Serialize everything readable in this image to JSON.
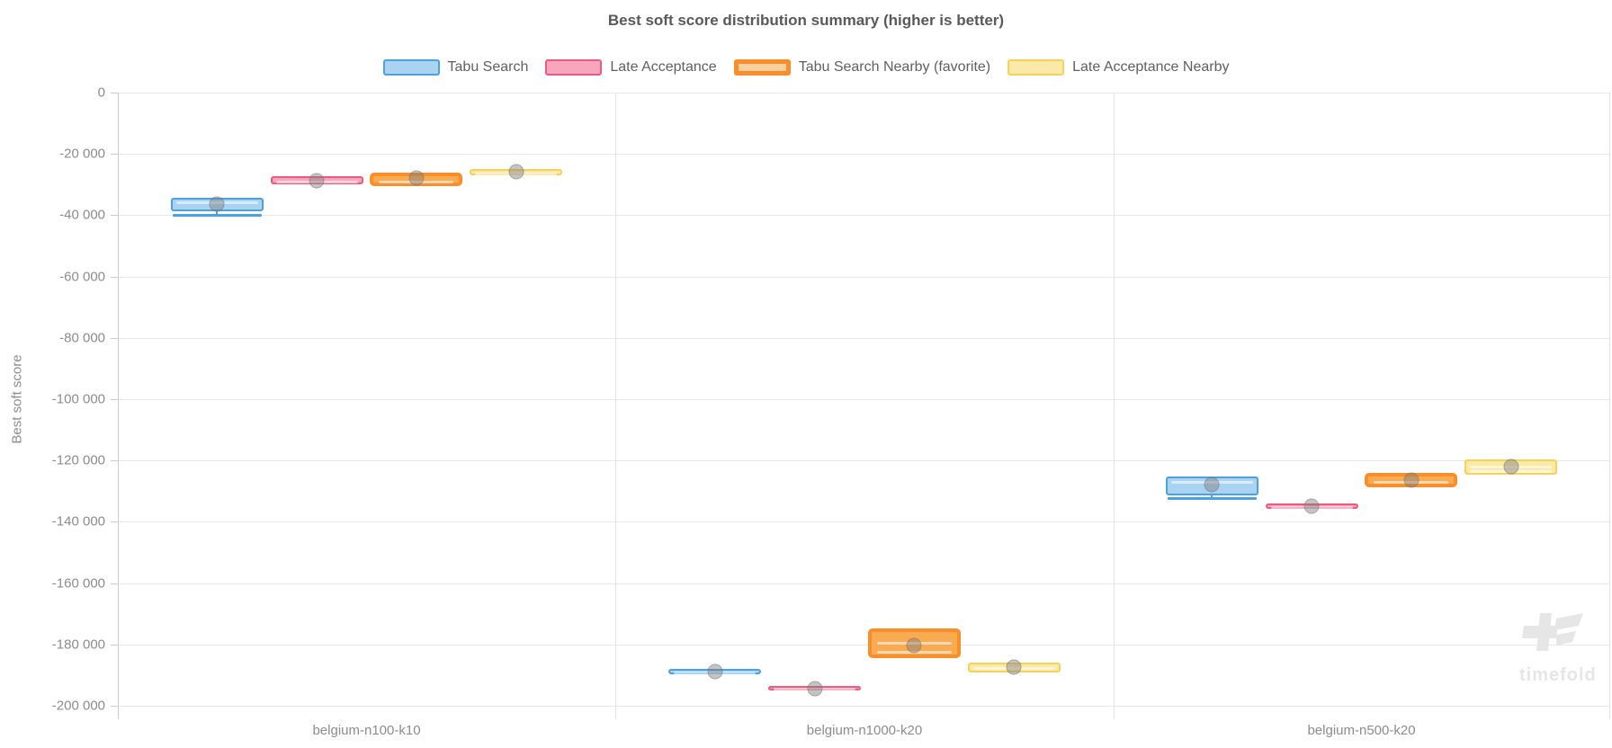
{
  "title": "Best soft score distribution summary (higher is better)",
  "legend": {
    "items": [
      {
        "label": "Tabu Search",
        "fill": "#A9D3F1",
        "border": "#4AA2E2",
        "thick": false
      },
      {
        "label": "Late Acceptance",
        "fill": "#F7A6BE",
        "border": "#F0597F",
        "thick": false
      },
      {
        "label": "Tabu Search Nearby (favorite)",
        "fill": "#FBCF9E",
        "border": "#F98E2B",
        "thick": true
      },
      {
        "label": "Late Acceptance Nearby",
        "fill": "#FBE9A8",
        "border": "#F7D158",
        "thick": false
      }
    ]
  },
  "y_axis": {
    "title": "Best soft score",
    "tick_labels": [
      "0",
      "-20 000",
      "-40 000",
      "-60 000",
      "-80 000",
      "-100 000",
      "-120 000",
      "-140 000",
      "-160 000",
      "-180 000",
      "-200 000"
    ]
  },
  "x_axis": {
    "categories": [
      "belgium-n100-k10",
      "belgium-n1000-k20",
      "belgium-n500-k20"
    ]
  },
  "watermark": {
    "text": "timefold"
  },
  "chart_data": {
    "type": "boxplot",
    "title": "Best soft score distribution summary (higher is better)",
    "ylabel": "Best soft score",
    "ylim": [
      -200000,
      0
    ],
    "grid": true,
    "legend_position": "top",
    "categories": [
      "belgium-n100-k10",
      "belgium-n1000-k20",
      "belgium-n500-k20"
    ],
    "series": [
      {
        "name": "Tabu Search",
        "color": "#4AA2E2",
        "fill": "#A9D3F1",
        "boxes": [
          {
            "q1": -38800,
            "q3": -34300,
            "median": -35200,
            "mean": -36300,
            "whisker_low": -40000
          },
          {
            "q1": -189800,
            "q3": -188000,
            "median": -188900,
            "mean": -189000
          },
          {
            "q1": -131400,
            "q3": -125200,
            "median": -126600,
            "mean": -128000,
            "whisker_low": -132200
          }
        ]
      },
      {
        "name": "Late Acceptance",
        "color": "#F0597F",
        "fill": "#F7A6BE",
        "boxes": [
          {
            "q1": -29900,
            "q3": -27400,
            "median": -28600,
            "mean": -28600
          },
          {
            "q1": -195100,
            "q3": -193600,
            "median": -194300,
            "mean": -194300
          },
          {
            "q1": -135800,
            "q3": -134000,
            "median": -134900,
            "mean": -134900
          }
        ]
      },
      {
        "name": "Tabu Search Nearby (favorite)",
        "color": "#F98E2B",
        "fill": "#FAAB52",
        "boxes": [
          {
            "q1": -30500,
            "q3": -26100,
            "median": -28000,
            "mean": -28000
          },
          {
            "q1": -184400,
            "q3": -174800,
            "median": -178500,
            "stripes": [
              -181300
            ],
            "mean": -180300
          },
          {
            "q1": -128700,
            "q3": -124000,
            "median": -126000,
            "mean": -126400
          }
        ]
      },
      {
        "name": "Late Acceptance Nearby",
        "color": "#F7D158",
        "fill": "#FBE9A8",
        "boxes": [
          {
            "q1": -27100,
            "q3": -24900,
            "median": -26000,
            "mean": -25900
          },
          {
            "q1": -189100,
            "q3": -185900,
            "median": -187300,
            "mean": -187500
          },
          {
            "q1": -124600,
            "q3": -119700,
            "median": -121500,
            "stripes": [
              -123100
            ],
            "mean": -121900
          }
        ]
      }
    ],
    "mean_dot_color": "rgba(125,125,125,0.45)"
  },
  "style": {
    "grid_color": "#E8E8E8",
    "axis_color": "#CBCBCB",
    "split_color": "#E3E3E3",
    "tick_text": "#8C8C8C",
    "title_text": "#595959",
    "legend_text": "#606060",
    "watermark_color": "#E6E6E6"
  }
}
